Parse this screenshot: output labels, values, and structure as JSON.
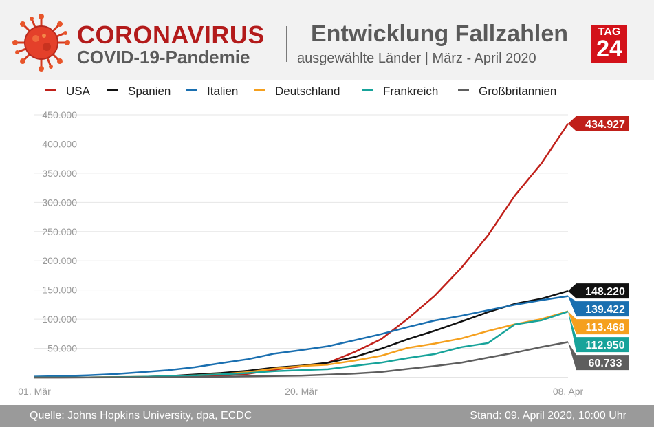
{
  "header": {
    "title": "CORONAVIRUS",
    "subtitle": "COVID-19-Pandemie",
    "subject_title": "Entwicklung Fallzahlen",
    "subject_subtitle": "ausgewählte Länder | März - April 2020",
    "logo_top": "TAG",
    "logo_bottom": "24",
    "icon": "virus-icon"
  },
  "footer": {
    "source": "Quelle: Johns Hopkins University, dpa, ECDC",
    "stand": "Stand: 09. April 2020, 10:00 Uhr"
  },
  "colors": {
    "brand_red": "#b31b1b",
    "header_bg": "#f2f2f2",
    "footer_bg": "#9a9a9a"
  },
  "chart_data": {
    "type": "line",
    "title": "Entwicklung Fallzahlen",
    "xlabel": "",
    "ylabel": "",
    "ylim": [
      0,
      450000
    ],
    "yticks": [
      50000,
      100000,
      150000,
      200000,
      250000,
      300000,
      350000,
      400000,
      450000
    ],
    "ytick_labels": [
      "50.000",
      "100.000",
      "150.000",
      "200.000",
      "250.000",
      "300.000",
      "350.000",
      "400.000",
      "450.000"
    ],
    "x": [
      "2020-03-01",
      "2020-03-03",
      "2020-03-05",
      "2020-03-07",
      "2020-03-09",
      "2020-03-11",
      "2020-03-13",
      "2020-03-15",
      "2020-03-17",
      "2020-03-19",
      "2020-03-20",
      "2020-03-21",
      "2020-03-23",
      "2020-03-25",
      "2020-03-27",
      "2020-03-29",
      "2020-03-31",
      "2020-04-02",
      "2020-04-04",
      "2020-04-06",
      "2020-04-08"
    ],
    "xtick_labels": [
      "01. Mär",
      "20. Mär",
      "08. Apr"
    ],
    "xtick_index": [
      0,
      10,
      20
    ],
    "grid": true,
    "legend_position": "top",
    "series": [
      {
        "name": "USA",
        "color": "#c0201a",
        "end_label": "434.927",
        "values": [
          70,
          120,
          200,
          400,
          700,
          1300,
          2200,
          3500,
          6400,
          13600,
          19100,
          25500,
          43700,
          65800,
          101000,
          139900,
          188000,
          243600,
          311400,
          366600,
          434927
        ]
      },
      {
        "name": "Spanien",
        "color": "#111111",
        "end_label": "148.220",
        "values": [
          80,
          150,
          250,
          500,
          1200,
          2300,
          5200,
          7800,
          11700,
          17100,
          20400,
          25400,
          35100,
          49500,
          65700,
          80100,
          95900,
          112100,
          126200,
          135000,
          148220
        ]
      },
      {
        "name": "Italien",
        "color": "#1a6fb0",
        "end_label": "139.422",
        "values": [
          1700,
          2500,
          3900,
          5900,
          9200,
          12500,
          17700,
          24700,
          31500,
          41000,
          47000,
          53600,
          63900,
          74400,
          86500,
          97700,
          105800,
          115200,
          124600,
          132500,
          139422
        ]
      },
      {
        "name": "Deutschland",
        "color": "#f5a01e",
        "end_label": "113.468",
        "values": [
          120,
          200,
          350,
          800,
          1200,
          1900,
          3700,
          5800,
          9300,
          15300,
          19800,
          22200,
          29000,
          37300,
          50900,
          58200,
          66900,
          79700,
          91200,
          100100,
          113468
        ]
      },
      {
        "name": "Frankreich",
        "color": "#17a39a",
        "end_label": "112.950",
        "values": [
          130,
          200,
          300,
          700,
          1200,
          2300,
          3700,
          5400,
          7700,
          10900,
          12600,
          14300,
          20100,
          25600,
          33400,
          40200,
          52100,
          59100,
          90800,
          98000,
          112950
        ]
      },
      {
        "name": "Großbritannien",
        "color": "#5e5e5e",
        "end_label": "60.733",
        "values": [
          40,
          50,
          100,
          200,
          300,
          500,
          800,
          1400,
          2000,
          2700,
          3300,
          5000,
          6700,
          9600,
          14800,
          19800,
          25500,
          34200,
          42500,
          52300,
          60733
        ]
      }
    ]
  }
}
